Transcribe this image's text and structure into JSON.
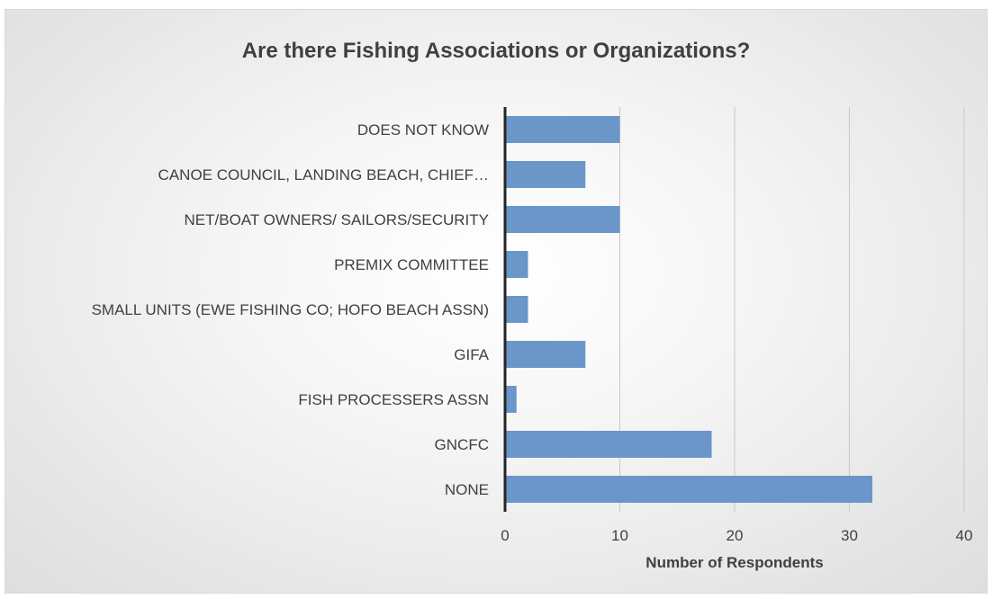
{
  "chart_data": {
    "type": "bar",
    "orientation": "horizontal",
    "title": "Are there Fishing Associations or Organizations?",
    "xlabel": "Number of Respondents",
    "ylabel": "",
    "xlim": [
      0,
      40
    ],
    "xticks": [
      0,
      10,
      20,
      30,
      40
    ],
    "grid": true,
    "legend": "none",
    "bar_color": "#6a96c9",
    "categories": [
      "DOES NOT KNOW",
      "CANOE COUNCIL, LANDING BEACH, CHIEF…",
      "NET/BOAT OWNERS/ SAILORS/SECURITY",
      "PREMIX COMMITTEE",
      "SMALL UNITS (EWE FISHING CO; HOFO BEACH ASSN)",
      "GIFA",
      "FISH PROCESSERS ASSN",
      "GNCFC",
      "NONE"
    ],
    "values": [
      10,
      7,
      10,
      2,
      2,
      7,
      1,
      18,
      32
    ]
  }
}
